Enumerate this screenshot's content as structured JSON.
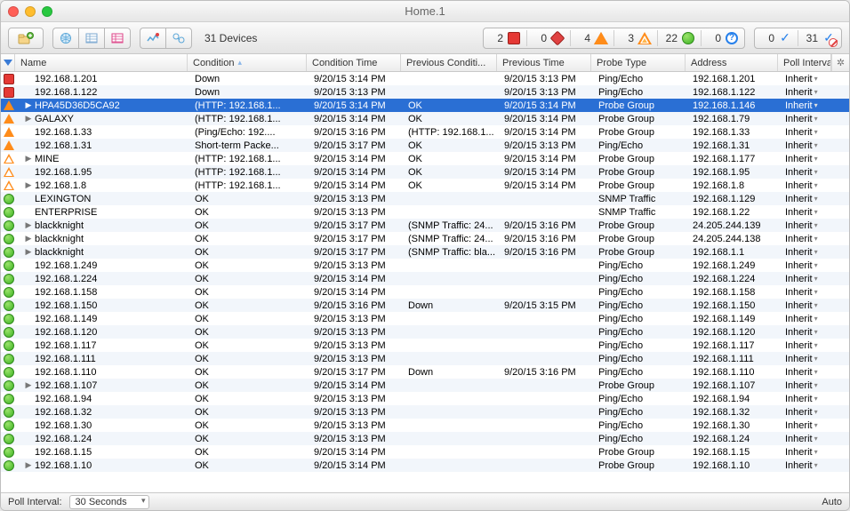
{
  "window": {
    "title": "Home.1"
  },
  "toolbar": {
    "device_count_label": "31 Devices",
    "status_summary": [
      {
        "count": 2,
        "kind": "red-square"
      },
      {
        "count": 0,
        "kind": "red-diamond"
      },
      {
        "count": 4,
        "kind": "orange-triangle"
      },
      {
        "count": 3,
        "kind": "orange-ring-triangle"
      },
      {
        "count": 22,
        "kind": "green-circle"
      },
      {
        "count": 0,
        "kind": "blue-question"
      }
    ],
    "ack_summary": [
      {
        "count": 0,
        "kind": "ack-check"
      },
      {
        "count": 31,
        "kind": "ack-no"
      }
    ]
  },
  "columns": {
    "name": "Name",
    "condition": "Condition",
    "condition_time": "Condition Time",
    "prev_condition": "Previous Conditi...",
    "prev_time": "Previous Time",
    "probe_type": "Probe Type",
    "address": "Address",
    "poll_interval": "Poll Interval"
  },
  "footer": {
    "label": "Poll Interval:",
    "value": "30 Seconds",
    "auto_label": "Auto"
  },
  "rows": [
    {
      "icon": "red-square",
      "expand": "",
      "name": "192.168.1.201",
      "condition": "Down",
      "ctime": "9/20/15 3:14 PM",
      "pcond": "",
      "ptime": "9/20/15 3:13 PM",
      "probe": "Ping/Echo",
      "addr": "192.168.1.201",
      "pi": "Inherit"
    },
    {
      "icon": "red-square",
      "expand": "",
      "name": "192.168.1.122",
      "condition": "Down",
      "ctime": "9/20/15 3:13 PM",
      "pcond": "",
      "ptime": "9/20/15 3:13 PM",
      "probe": "Ping/Echo",
      "addr": "192.168.1.122",
      "pi": "Inherit"
    },
    {
      "icon": "orange-triangle",
      "expand": "▶",
      "name": "HPA45D36D5CA92",
      "condition": "(HTTP: 192.168.1...",
      "ctime": "9/20/15 3:14 PM",
      "pcond": "OK",
      "ptime": "9/20/15 3:14 PM",
      "probe": "Probe Group",
      "addr": "192.168.1.146",
      "pi": "Inherit",
      "selected": true
    },
    {
      "icon": "orange-triangle",
      "expand": "▶",
      "name": "GALAXY",
      "condition": "(HTTP: 192.168.1...",
      "ctime": "9/20/15 3:14 PM",
      "pcond": "OK",
      "ptime": "9/20/15 3:14 PM",
      "probe": "Probe Group",
      "addr": "192.168.1.79",
      "pi": "Inherit"
    },
    {
      "icon": "orange-triangle",
      "expand": "",
      "name": "192.168.1.33",
      "condition": "(Ping/Echo: 192....",
      "ctime": "9/20/15 3:16 PM",
      "pcond": "(HTTP: 192.168.1...",
      "ptime": "9/20/15 3:14 PM",
      "probe": "Probe Group",
      "addr": "192.168.1.33",
      "pi": "Inherit"
    },
    {
      "icon": "orange-triangle",
      "expand": "",
      "name": "192.168.1.31",
      "condition": "Short-term Packe...",
      "ctime": "9/20/15 3:17 PM",
      "pcond": "OK",
      "ptime": "9/20/15 3:13 PM",
      "probe": "Ping/Echo",
      "addr": "192.168.1.31",
      "pi": "Inherit"
    },
    {
      "icon": "orange-ring",
      "expand": "▶",
      "name": "MINE",
      "condition": "(HTTP: 192.168.1...",
      "ctime": "9/20/15 3:14 PM",
      "pcond": "OK",
      "ptime": "9/20/15 3:14 PM",
      "probe": "Probe Group",
      "addr": "192.168.1.177",
      "pi": "Inherit"
    },
    {
      "icon": "orange-ring",
      "expand": "",
      "name": "192.168.1.95",
      "condition": "(HTTP: 192.168.1...",
      "ctime": "9/20/15 3:14 PM",
      "pcond": "OK",
      "ptime": "9/20/15 3:14 PM",
      "probe": "Probe Group",
      "addr": "192.168.1.95",
      "pi": "Inherit"
    },
    {
      "icon": "orange-ring",
      "expand": "▶",
      "name": "192.168.1.8",
      "condition": "(HTTP: 192.168.1...",
      "ctime": "9/20/15 3:14 PM",
      "pcond": "OK",
      "ptime": "9/20/15 3:14 PM",
      "probe": "Probe Group",
      "addr": "192.168.1.8",
      "pi": "Inherit"
    },
    {
      "icon": "green-circle",
      "expand": "",
      "name": "LEXINGTON",
      "condition": "OK",
      "ctime": "9/20/15 3:13 PM",
      "pcond": "",
      "ptime": "",
      "probe": "SNMP Traffic",
      "addr": "192.168.1.129",
      "pi": "Inherit"
    },
    {
      "icon": "green-circle",
      "expand": "",
      "name": "ENTERPRISE",
      "condition": "OK",
      "ctime": "9/20/15 3:13 PM",
      "pcond": "",
      "ptime": "",
      "probe": "SNMP Traffic",
      "addr": "192.168.1.22",
      "pi": "Inherit"
    },
    {
      "icon": "green-circle",
      "expand": "▶",
      "name": "blackknight",
      "condition": "OK",
      "ctime": "9/20/15 3:17 PM",
      "pcond": "(SNMP Traffic: 24...",
      "ptime": "9/20/15 3:16 PM",
      "probe": "Probe Group",
      "addr": "24.205.244.139",
      "pi": "Inherit"
    },
    {
      "icon": "green-circle",
      "expand": "▶",
      "name": "blackknight",
      "condition": "OK",
      "ctime": "9/20/15 3:17 PM",
      "pcond": "(SNMP Traffic: 24...",
      "ptime": "9/20/15 3:16 PM",
      "probe": "Probe Group",
      "addr": "24.205.244.138",
      "pi": "Inherit"
    },
    {
      "icon": "green-circle",
      "expand": "▶",
      "name": "blackknight",
      "condition": "OK",
      "ctime": "9/20/15 3:17 PM",
      "pcond": "(SNMP Traffic: bla...",
      "ptime": "9/20/15 3:16 PM",
      "probe": "Probe Group",
      "addr": "192.168.1.1",
      "pi": "Inherit"
    },
    {
      "icon": "green-circle",
      "expand": "",
      "name": "192.168.1.249",
      "condition": "OK",
      "ctime": "9/20/15 3:13 PM",
      "pcond": "",
      "ptime": "",
      "probe": "Ping/Echo",
      "addr": "192.168.1.249",
      "pi": "Inherit"
    },
    {
      "icon": "green-circle",
      "expand": "",
      "name": "192.168.1.224",
      "condition": "OK",
      "ctime": "9/20/15 3:14 PM",
      "pcond": "",
      "ptime": "",
      "probe": "Ping/Echo",
      "addr": "192.168.1.224",
      "pi": "Inherit"
    },
    {
      "icon": "green-circle",
      "expand": "",
      "name": "192.168.1.158",
      "condition": "OK",
      "ctime": "9/20/15 3:14 PM",
      "pcond": "",
      "ptime": "",
      "probe": "Ping/Echo",
      "addr": "192.168.1.158",
      "pi": "Inherit"
    },
    {
      "icon": "green-circle",
      "expand": "",
      "name": "192.168.1.150",
      "condition": "OK",
      "ctime": "9/20/15 3:16 PM",
      "pcond": "Down",
      "ptime": "9/20/15 3:15 PM",
      "probe": "Ping/Echo",
      "addr": "192.168.1.150",
      "pi": "Inherit"
    },
    {
      "icon": "green-circle",
      "expand": "",
      "name": "192.168.1.149",
      "condition": "OK",
      "ctime": "9/20/15 3:13 PM",
      "pcond": "",
      "ptime": "",
      "probe": "Ping/Echo",
      "addr": "192.168.1.149",
      "pi": "Inherit"
    },
    {
      "icon": "green-circle",
      "expand": "",
      "name": "192.168.1.120",
      "condition": "OK",
      "ctime": "9/20/15 3:13 PM",
      "pcond": "",
      "ptime": "",
      "probe": "Ping/Echo",
      "addr": "192.168.1.120",
      "pi": "Inherit"
    },
    {
      "icon": "green-circle",
      "expand": "",
      "name": "192.168.1.117",
      "condition": "OK",
      "ctime": "9/20/15 3:13 PM",
      "pcond": "",
      "ptime": "",
      "probe": "Ping/Echo",
      "addr": "192.168.1.117",
      "pi": "Inherit"
    },
    {
      "icon": "green-circle",
      "expand": "",
      "name": "192.168.1.111",
      "condition": "OK",
      "ctime": "9/20/15 3:13 PM",
      "pcond": "",
      "ptime": "",
      "probe": "Ping/Echo",
      "addr": "192.168.1.111",
      "pi": "Inherit"
    },
    {
      "icon": "green-circle",
      "expand": "",
      "name": "192.168.1.110",
      "condition": "OK",
      "ctime": "9/20/15 3:17 PM",
      "pcond": "Down",
      "ptime": "9/20/15 3:16 PM",
      "probe": "Ping/Echo",
      "addr": "192.168.1.110",
      "pi": "Inherit"
    },
    {
      "icon": "green-circle",
      "expand": "▶",
      "name": "192.168.1.107",
      "condition": "OK",
      "ctime": "9/20/15 3:14 PM",
      "pcond": "",
      "ptime": "",
      "probe": "Probe Group",
      "addr": "192.168.1.107",
      "pi": "Inherit"
    },
    {
      "icon": "green-circle",
      "expand": "",
      "name": "192.168.1.94",
      "condition": "OK",
      "ctime": "9/20/15 3:13 PM",
      "pcond": "",
      "ptime": "",
      "probe": "Ping/Echo",
      "addr": "192.168.1.94",
      "pi": "Inherit"
    },
    {
      "icon": "green-circle",
      "expand": "",
      "name": "192.168.1.32",
      "condition": "OK",
      "ctime": "9/20/15 3:13 PM",
      "pcond": "",
      "ptime": "",
      "probe": "Ping/Echo",
      "addr": "192.168.1.32",
      "pi": "Inherit"
    },
    {
      "icon": "green-circle",
      "expand": "",
      "name": "192.168.1.30",
      "condition": "OK",
      "ctime": "9/20/15 3:13 PM",
      "pcond": "",
      "ptime": "",
      "probe": "Ping/Echo",
      "addr": "192.168.1.30",
      "pi": "Inherit"
    },
    {
      "icon": "green-circle",
      "expand": "",
      "name": "192.168.1.24",
      "condition": "OK",
      "ctime": "9/20/15 3:13 PM",
      "pcond": "",
      "ptime": "",
      "probe": "Ping/Echo",
      "addr": "192.168.1.24",
      "pi": "Inherit"
    },
    {
      "icon": "green-circle",
      "expand": "",
      "name": "192.168.1.15",
      "condition": "OK",
      "ctime": "9/20/15 3:14 PM",
      "pcond": "",
      "ptime": "",
      "probe": "Probe Group",
      "addr": "192.168.1.15",
      "pi": "Inherit"
    },
    {
      "icon": "green-circle",
      "expand": "▶",
      "name": "192.168.1.10",
      "condition": "OK",
      "ctime": "9/20/15 3:14 PM",
      "pcond": "",
      "ptime": "",
      "probe": "Probe Group",
      "addr": "192.168.1.10",
      "pi": "Inherit"
    }
  ]
}
